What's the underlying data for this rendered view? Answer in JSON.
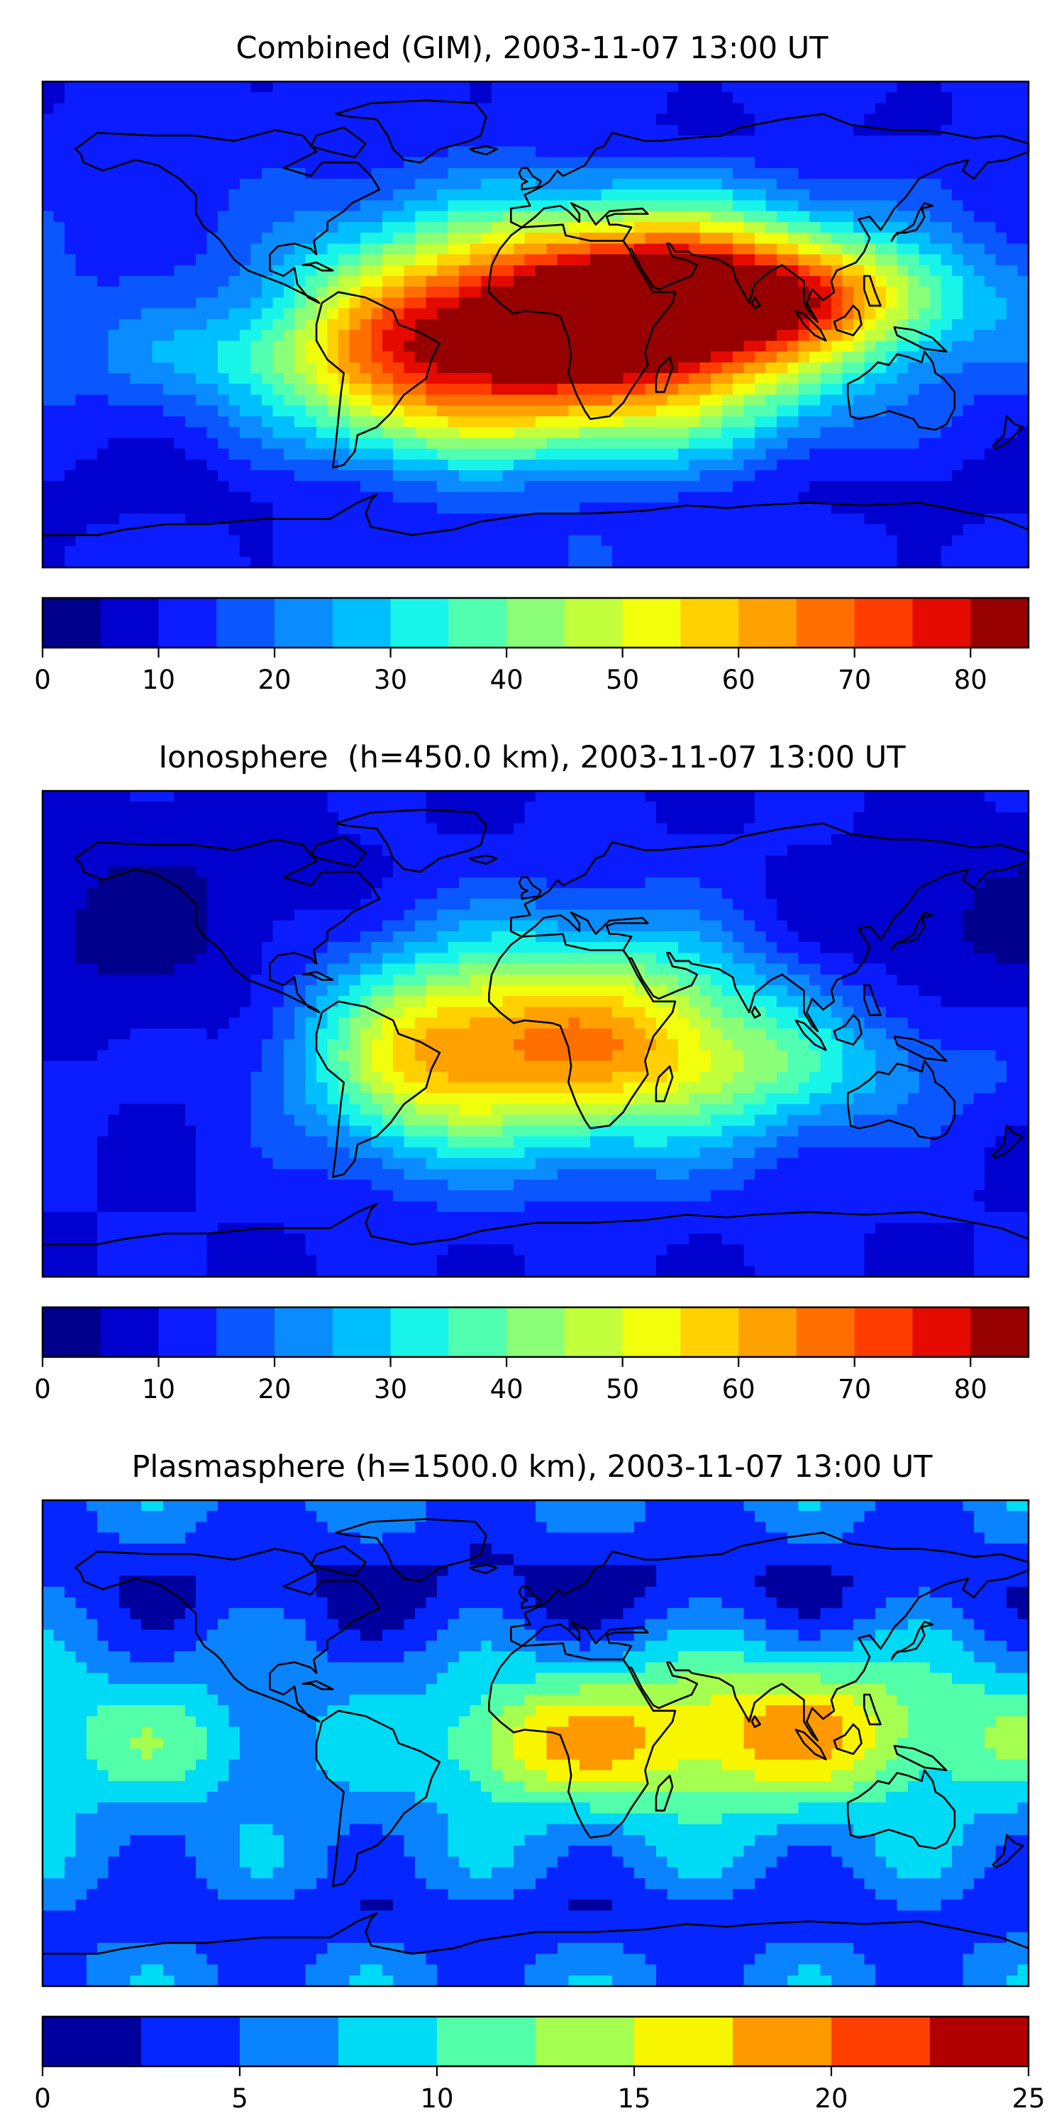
{
  "palettes": {
    "tec17": [
      "#00008c",
      "#0000cf",
      "#0b1cff",
      "#0b57ff",
      "#0a8cff",
      "#00bfff",
      "#18f5e8",
      "#50ffb0",
      "#8cff78",
      "#c2ff3c",
      "#f2ff0c",
      "#ffd100",
      "#ffa100",
      "#ff6f00",
      "#ff3d00",
      "#e40a00",
      "#960000"
    ],
    "plasma10": [
      "#00009f",
      "#0526ff",
      "#0a83ff",
      "#00dbf5",
      "#52ffa8",
      "#a5ff50",
      "#f7f500",
      "#ff9900",
      "#ff3f00",
      "#b00000"
    ]
  },
  "colors": {
    "land_outline": "#000000",
    "frame": "#000000"
  },
  "chart_data": [
    {
      "type": "heatmap",
      "title": "Combined (GIM), 2003-11-07 13:00 UT",
      "xlabel": "",
      "ylabel": "",
      "levels": [
        0,
        5,
        10,
        15,
        20,
        25,
        30,
        35,
        40,
        45,
        50,
        55,
        60,
        65,
        70,
        75,
        80,
        85
      ],
      "palette": "tec17",
      "colorbar_ticks": [
        0,
        10,
        20,
        30,
        40,
        50,
        60,
        70,
        80
      ],
      "background_level": 12,
      "features": [
        {
          "lon": 20,
          "lat": -5,
          "value": 76,
          "sx": 55,
          "sy": 30
        },
        {
          "lon": 55,
          "lat": 12,
          "value": 52,
          "sx": 45,
          "sy": 20
        },
        {
          "lon": -50,
          "lat": -10,
          "value": 45,
          "sx": 35,
          "sy": 28
        },
        {
          "lon": 110,
          "lat": 10,
          "value": 38,
          "sx": 40,
          "sy": 15
        },
        {
          "lon": -120,
          "lat": -12,
          "value": 22,
          "sx": 40,
          "sy": 12
        },
        {
          "lon": 0,
          "lat": -60,
          "value": 6,
          "sx": 180,
          "sy": 12
        },
        {
          "lon": 60,
          "lat": 70,
          "value": 8,
          "sx": 70,
          "sy": 10
        }
      ]
    },
    {
      "type": "heatmap",
      "title": "Ionosphere  (h=450.0 km), 2003-11-07 13:00 UT",
      "xlabel": "",
      "ylabel": "",
      "levels": [
        0,
        5,
        10,
        15,
        20,
        25,
        30,
        35,
        40,
        45,
        50,
        55,
        60,
        65,
        70,
        75,
        80,
        85
      ],
      "palette": "tec17",
      "colorbar_ticks": [
        0,
        10,
        20,
        30,
        40,
        50,
        60,
        70,
        80
      ],
      "background_level": 10,
      "features": [
        {
          "lon": 20,
          "lat": -2,
          "value": 60,
          "sx": 50,
          "sy": 28
        },
        {
          "lon": -45,
          "lat": -10,
          "value": 38,
          "sx": 30,
          "sy": 25
        },
        {
          "lon": -140,
          "lat": 40,
          "value": 4,
          "sx": 50,
          "sy": 30
        },
        {
          "lon": 120,
          "lat": 40,
          "value": 5,
          "sx": 40,
          "sy": 15
        },
        {
          "lon": 100,
          "lat": -15,
          "value": 22,
          "sx": 50,
          "sy": 15
        }
      ]
    },
    {
      "type": "heatmap",
      "title": "Plasmasphere (h=1500.0 km), 2003-11-07 13:00 UT",
      "xlabel": "",
      "ylabel": "",
      "levels": [
        0,
        2.5,
        5,
        7.5,
        10,
        12.5,
        15,
        17.5,
        20,
        22.5,
        25
      ],
      "palette": "plasma10",
      "colorbar_ticks": [
        0,
        5,
        10,
        15,
        20,
        25
      ],
      "background_level": 6,
      "features": [
        {
          "lon": 100,
          "lat": 5,
          "value": 16,
          "sx": 50,
          "sy": 20
        },
        {
          "lon": 30,
          "lat": 0,
          "value": 13,
          "sx": 40,
          "sy": 18
        },
        {
          "lon": -140,
          "lat": 0,
          "value": 10,
          "sx": 40,
          "sy": 15
        },
        {
          "lon": -10,
          "lat": 0,
          "value": 11,
          "sx": 20,
          "sy": 15
        },
        {
          "lon": 0,
          "lat": 60,
          "value": 2,
          "sx": 180,
          "sy": 15
        },
        {
          "lon": 0,
          "lat": -65,
          "value": 3,
          "sx": 180,
          "sy": 10
        }
      ]
    }
  ]
}
